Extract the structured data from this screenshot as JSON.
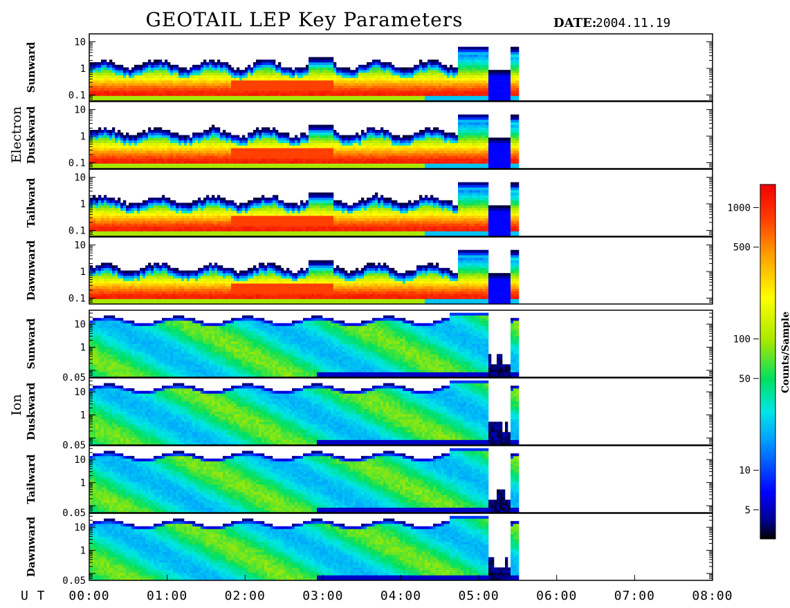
{
  "header": {
    "title": "GEOTAIL LEP Key Parameters",
    "date_label": "DATE:",
    "date_value": "2004.11.19"
  },
  "groups": [
    {
      "name": "Electron"
    },
    {
      "name": "Ion"
    }
  ],
  "x_axis": {
    "prefix": "U T",
    "ticks": [
      "00:00",
      "01:00",
      "02:00",
      "03:00",
      "04:00",
      "05:00",
      "06:00",
      "07:00",
      "08:00"
    ]
  },
  "colorbar": {
    "label": "Counts/Sample",
    "ticks": [
      {
        "label": "5",
        "value": 5
      },
      {
        "label": "10",
        "value": 10
      },
      {
        "label": "50",
        "value": 50
      },
      {
        "label": "100",
        "value": 100
      },
      {
        "label": "500",
        "value": 500
      },
      {
        "label": "1000",
        "value": 1000
      }
    ],
    "range": [
      3,
      1500
    ],
    "scale": "log",
    "colormap": [
      "#000000",
      "#00008c",
      "#0000ff",
      "#00a0ff",
      "#00e6e6",
      "#00e060",
      "#a8e800",
      "#ffff00",
      "#ffa000",
      "#ff4000",
      "#f00000"
    ]
  },
  "chart_data": {
    "type": "heatmap",
    "title": "GEOTAIL LEP Key Parameters",
    "x_range_hours": [
      0,
      8
    ],
    "data_end_hours": 5.5,
    "panels": [
      {
        "group": "Electron",
        "label": "Sunward",
        "y_ticks": [
          {
            "label": "10",
            "value": 10
          },
          {
            "label": "1",
            "value": 1
          },
          {
            "label": "0.1",
            "value": 0.1
          }
        ],
        "ylim": [
          0.06,
          20
        ],
        "yscale": "log"
      },
      {
        "group": "Electron",
        "label": "Duskward",
        "y_ticks": [
          {
            "label": "10",
            "value": 10
          },
          {
            "label": "1",
            "value": 1
          },
          {
            "label": "0.1",
            "value": 0.1
          }
        ],
        "ylim": [
          0.06,
          20
        ],
        "yscale": "log"
      },
      {
        "group": "Electron",
        "label": "Tailward",
        "y_ticks": [
          {
            "label": "10",
            "value": 10
          },
          {
            "label": "1",
            "value": 1
          },
          {
            "label": "0.1",
            "value": 0.1
          }
        ],
        "ylim": [
          0.06,
          20
        ],
        "yscale": "log"
      },
      {
        "group": "Electron",
        "label": "Dawnward",
        "y_ticks": [
          {
            "label": "10",
            "value": 10
          },
          {
            "label": "1",
            "value": 1
          },
          {
            "label": "0.1",
            "value": 0.1
          }
        ],
        "ylim": [
          0.06,
          20
        ],
        "yscale": "log"
      },
      {
        "group": "Ion",
        "label": "Sunward",
        "y_ticks": [
          {
            "label": "10",
            "value": 10
          },
          {
            "label": "1",
            "value": 1
          },
          {
            "label": "0.05",
            "value": 0.05
          }
        ],
        "ylim": [
          0.05,
          40
        ],
        "yscale": "log"
      },
      {
        "group": "Ion",
        "label": "Duskward",
        "y_ticks": [
          {
            "label": "10",
            "value": 10
          },
          {
            "label": "1",
            "value": 1
          },
          {
            "label": "0.05",
            "value": 0.05
          }
        ],
        "ylim": [
          0.05,
          40
        ],
        "yscale": "log"
      },
      {
        "group": "Ion",
        "label": "Tailward",
        "y_ticks": [
          {
            "label": "10",
            "value": 10
          },
          {
            "label": "1",
            "value": 1
          },
          {
            "label": "0.05",
            "value": 0.05
          }
        ],
        "ylim": [
          0.05,
          40
        ],
        "yscale": "log"
      },
      {
        "group": "Ion",
        "label": "Dawnward",
        "y_ticks": [
          {
            "label": "10",
            "value": 10
          },
          {
            "label": "1",
            "value": 1
          },
          {
            "label": "0.05",
            "value": 0.05
          }
        ],
        "ylim": [
          0.05,
          40
        ],
        "yscale": "log"
      }
    ]
  }
}
